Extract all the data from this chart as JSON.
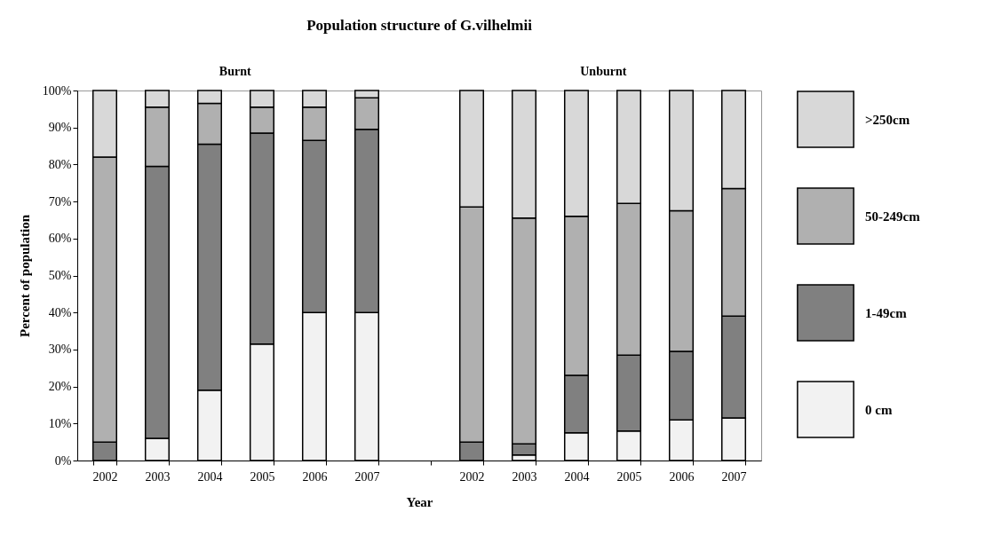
{
  "chart_data": {
    "type": "bar",
    "title": "Population structure of G.vilhelmii",
    "xlabel": "Year",
    "ylabel": "Percent of population",
    "annotations": [
      "Burnt",
      "Unburnt"
    ],
    "categories": [
      "2002",
      "2003",
      "2004",
      "2005",
      "2006",
      "2007",
      null,
      "2002",
      "2003",
      "2004",
      "2005",
      "2006",
      "2007"
    ],
    "stacked": true,
    "series": [
      {
        "name": "0 cm",
        "color": "#f2f2f2",
        "values": [
          0,
          6,
          19,
          31.5,
          40,
          40,
          null,
          0,
          1.5,
          7.5,
          8,
          11,
          11.5
        ]
      },
      {
        "name": "1-49cm",
        "color": "#808080",
        "values": [
          5,
          73.5,
          66.5,
          57,
          46.5,
          49.5,
          null,
          5,
          3,
          15.5,
          20.5,
          18.5,
          27.5
        ]
      },
      {
        "name": "50-249cm",
        "color": "#b0b0b0",
        "values": [
          77,
          16,
          11,
          7,
          9,
          8.5,
          null,
          63.5,
          61,
          43,
          41,
          38,
          34.5
        ]
      },
      {
        "name": ">250cm",
        "color": "#d8d8d8",
        "values": [
          18,
          4.5,
          3.5,
          4.5,
          4.5,
          2,
          null,
          31.5,
          34.5,
          34,
          30.5,
          32.5,
          26.5
        ]
      }
    ],
    "ylim": [
      0,
      100
    ],
    "yticks": [
      {
        "value": 0,
        "label": "0%"
      },
      {
        "value": 10,
        "label": "10%"
      },
      {
        "value": 20,
        "label": "20%"
      },
      {
        "value": 30,
        "label": "30%"
      },
      {
        "value": 40,
        "label": "40%"
      },
      {
        "value": 50,
        "label": "50%"
      },
      {
        "value": 60,
        "label": "60%"
      },
      {
        "value": 70,
        "label": "70%"
      },
      {
        "value": 80,
        "label": "80%"
      },
      {
        "value": 90,
        "label": "90%"
      },
      {
        "value": 100,
        "label": "100%"
      }
    ],
    "grid": false,
    "legend": "right"
  }
}
